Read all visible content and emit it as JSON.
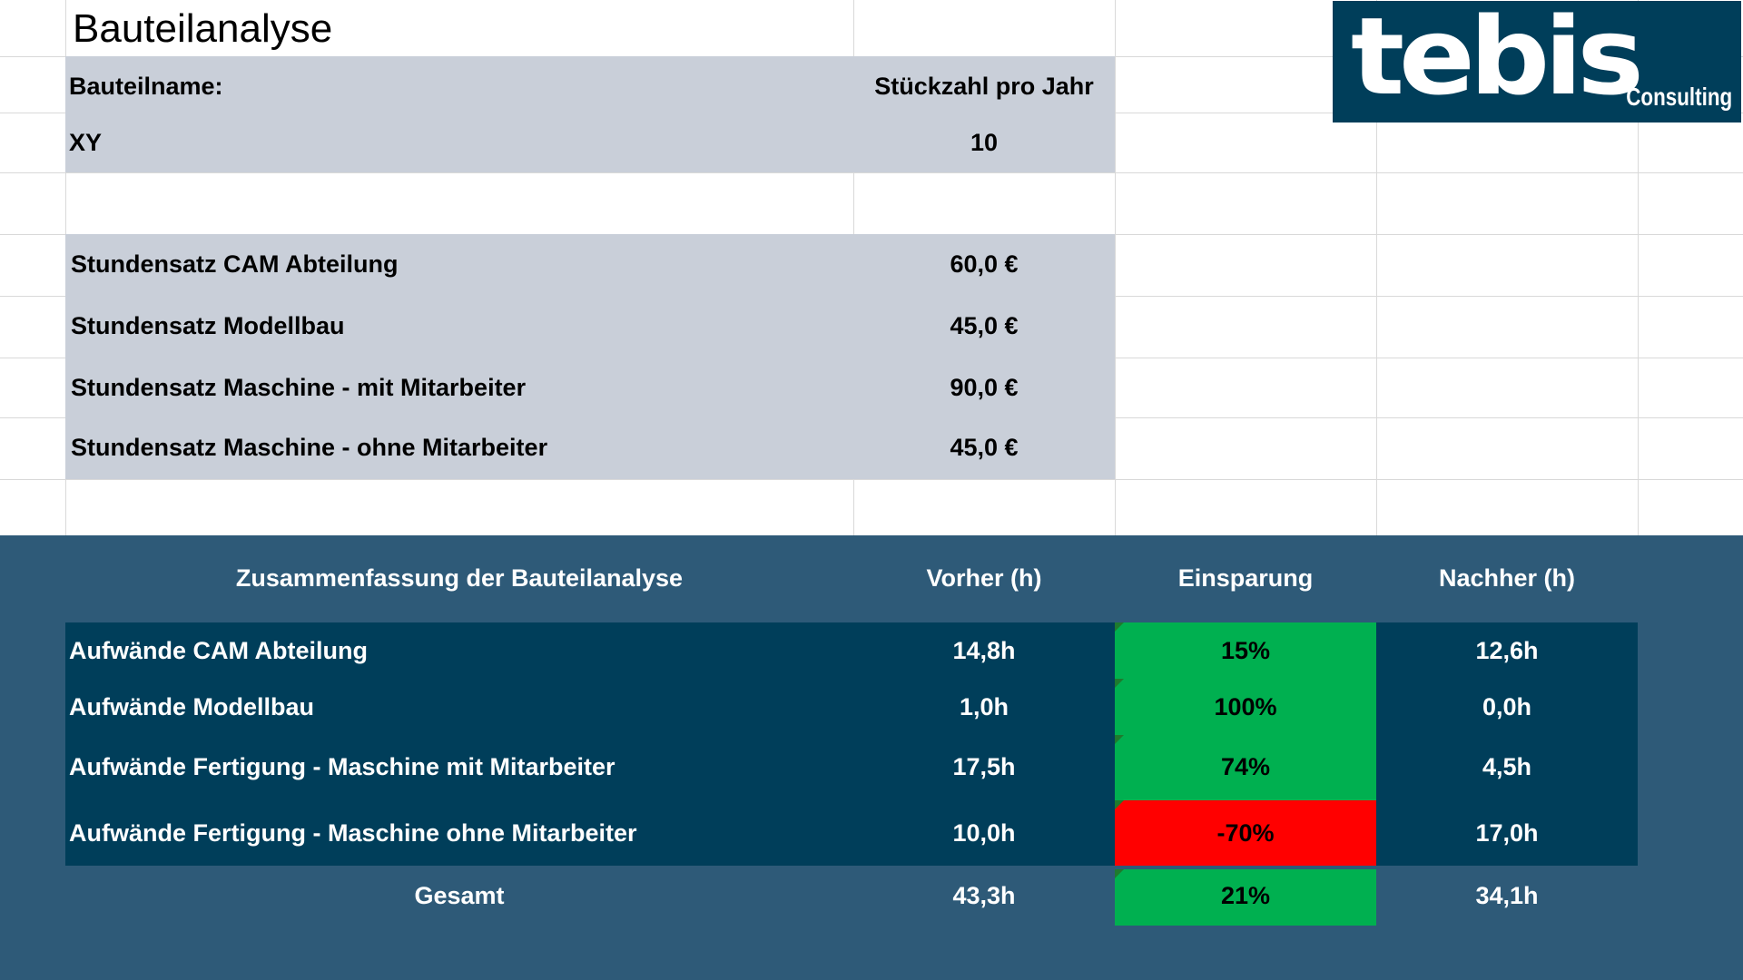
{
  "title": "Bauteilanalyse",
  "logo": {
    "main": "tebis",
    "sub": "Consulting"
  },
  "header": {
    "name_label": "Bauteilname:",
    "quantity_label": "Stückzahl pro Jahr",
    "name_value": "XY",
    "quantity_value": "10"
  },
  "rates": [
    {
      "label": "Stundensatz CAM Abteilung",
      "value": "60,0 €"
    },
    {
      "label": "Stundensatz Modellbau",
      "value": "45,0 €"
    },
    {
      "label": "Stundensatz Maschine - mit Mitarbeiter",
      "value": "90,0 €"
    },
    {
      "label": "Stundensatz Maschine - ohne Mitarbeiter",
      "value": "45,0 €"
    }
  ],
  "summary": {
    "headers": [
      "Zusammenfassung der Bauteilanalyse",
      "Vorher (h)",
      "Einsparung",
      "Nachher (h)"
    ],
    "rows": [
      {
        "label": "Aufwände CAM Abteilung",
        "before": "14,8h",
        "saving": "15%",
        "after": "12,6h",
        "status": "positive"
      },
      {
        "label": "Aufwände Modellbau",
        "before": "1,0h",
        "saving": "100%",
        "after": "0,0h",
        "status": "positive"
      },
      {
        "label": "Aufwände Fertigung - Maschine mit Mitarbeiter",
        "before": "17,5h",
        "saving": "74%",
        "after": "4,5h",
        "status": "positive"
      },
      {
        "label": "Aufwände Fertigung - Maschine ohne Mitarbeiter",
        "before": "10,0h",
        "saving": "-70%",
        "after": "17,0h",
        "status": "negative"
      }
    ],
    "total": {
      "label": "Gesamt",
      "before": "43,3h",
      "saving": "21%",
      "after": "34,1h"
    }
  },
  "colors": {
    "gray_panel": "#c9cfd9",
    "summary_bg": "#2e5a78",
    "row_bg": "#003e5a",
    "positive": "#00b050",
    "negative": "#ff0000"
  }
}
